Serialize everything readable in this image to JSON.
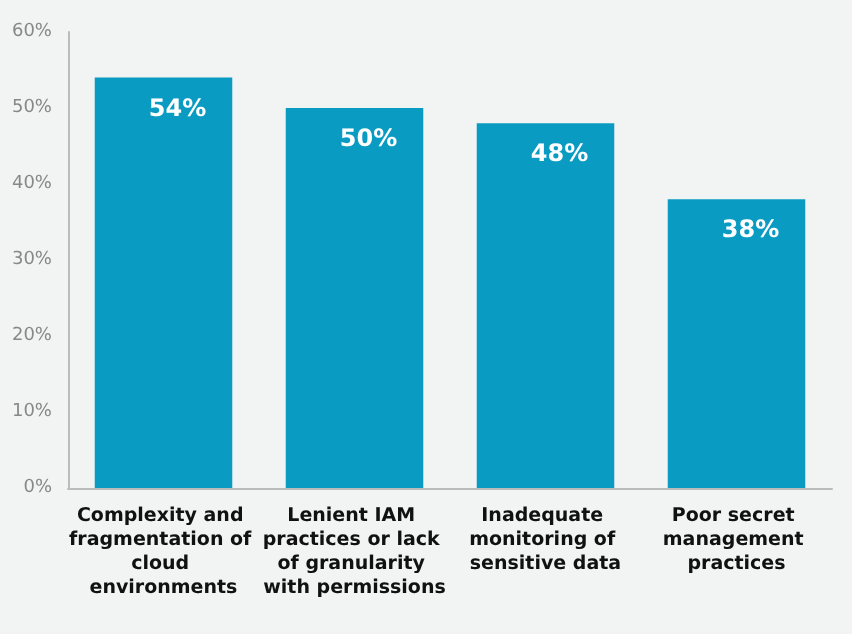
{
  "chart_data": {
    "type": "bar",
    "categories": [
      "Complexity and fragmentation of cloud environments",
      "Lenient IAM practices or lack of granularity with permissions",
      "Inadequate monitoring of sensitive data",
      "Poor secret management practices"
    ],
    "values": [
      54,
      50,
      48,
      38
    ],
    "value_labels": [
      "54%",
      "50%",
      "48%",
      "38%"
    ],
    "color": "#0a9bc2",
    "ylim": [
      0,
      60
    ],
    "yticks": [
      {
        "value": 0,
        "label": "0%"
      },
      {
        "value": 10,
        "label": "10%"
      },
      {
        "value": 20,
        "label": "20%"
      },
      {
        "value": 30,
        "label": "30%"
      },
      {
        "value": 40,
        "label": "40%"
      },
      {
        "value": 50,
        "label": "50%"
      },
      {
        "value": 60,
        "label": "60%"
      }
    ],
    "grid": false
  }
}
